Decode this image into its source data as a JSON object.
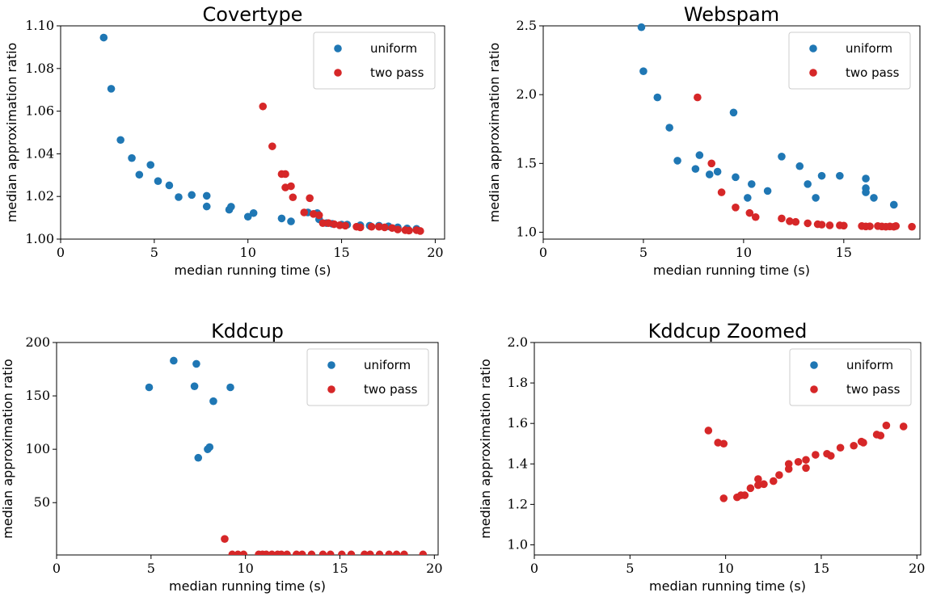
{
  "chart_data": [
    {
      "type": "scatter",
      "title": "Covertype",
      "xlabel": "median running time (s)",
      "ylabel": "median approximation ratio",
      "xlim": [
        0,
        20.5
      ],
      "ylim": [
        1.0,
        1.1
      ],
      "xticks": [
        "0",
        "5",
        "10",
        "15",
        "20"
      ],
      "xtick_values": [
        0,
        5,
        10,
        15,
        20
      ],
      "yticks": [
        "1.00",
        "1.02",
        "1.04",
        "1.06",
        "1.08",
        "1.10"
      ],
      "ytick_values": [
        1.0,
        1.02,
        1.04,
        1.06,
        1.08,
        1.1
      ],
      "legend_position": "top-right",
      "series": [
        {
          "name": "uniform",
          "color": "#1f77b4",
          "points": [
            [
              2.3,
              1.0945
            ],
            [
              2.7,
              1.0705
            ],
            [
              3.2,
              1.0465
            ],
            [
              3.8,
              1.038
            ],
            [
              4.2,
              1.0302
            ],
            [
              4.8,
              1.0348
            ],
            [
              5.2,
              1.0272
            ],
            [
              5.8,
              1.0252
            ],
            [
              6.3,
              1.0197
            ],
            [
              7.0,
              1.0207
            ],
            [
              7.8,
              1.0203
            ],
            [
              7.8,
              1.0153
            ],
            [
              9.0,
              1.0138
            ],
            [
              9.1,
              1.0152
            ],
            [
              10.0,
              1.0105
            ],
            [
              10.3,
              1.0122
            ],
            [
              11.8,
              1.0097
            ],
            [
              12.3,
              1.0083
            ],
            [
              13.2,
              1.0125
            ],
            [
              13.7,
              1.0122
            ],
            [
              13.8,
              1.0093
            ],
            [
              14.2,
              1.0075
            ],
            [
              14.5,
              1.0072
            ],
            [
              15.0,
              1.0068
            ],
            [
              15.3,
              1.0068
            ],
            [
              16.0,
              1.0065
            ],
            [
              16.5,
              1.0063
            ],
            [
              17.0,
              1.0063
            ],
            [
              17.5,
              1.006
            ],
            [
              18.0,
              1.0055
            ],
            [
              18.5,
              1.005
            ],
            [
              19.0,
              1.0048
            ]
          ]
        },
        {
          "name": "two pass",
          "color": "#d62728",
          "points": [
            [
              10.8,
              1.0622
            ],
            [
              11.3,
              1.0435
            ],
            [
              11.8,
              1.0305
            ],
            [
              12.0,
              1.0305
            ],
            [
              12.0,
              1.0242
            ],
            [
              12.3,
              1.0248
            ],
            [
              12.4,
              1.0196
            ],
            [
              13.0,
              1.0125
            ],
            [
              13.3,
              1.0192
            ],
            [
              13.5,
              1.0118
            ],
            [
              13.8,
              1.0112
            ],
            [
              14.0,
              1.0075
            ],
            [
              14.3,
              1.0075
            ],
            [
              14.6,
              1.007
            ],
            [
              14.9,
              1.0065
            ],
            [
              15.2,
              1.0063
            ],
            [
              15.8,
              1.0058
            ],
            [
              16.0,
              1.0055
            ],
            [
              16.6,
              1.0058
            ],
            [
              17.0,
              1.0058
            ],
            [
              17.3,
              1.0055
            ],
            [
              17.7,
              1.0052
            ],
            [
              18.0,
              1.0045
            ],
            [
              18.4,
              1.0042
            ],
            [
              18.6,
              1.004
            ],
            [
              19.0,
              1.0042
            ],
            [
              19.2,
              1.0038
            ]
          ]
        }
      ]
    },
    {
      "type": "scatter",
      "title": "Webspam",
      "xlabel": "median running time (s)",
      "ylabel": "median approximation ratio",
      "xlim": [
        0,
        18.8
      ],
      "ylim": [
        0.95,
        2.5
      ],
      "xticks": [
        "0",
        "5",
        "10",
        "15"
      ],
      "xtick_values": [
        0,
        5,
        10,
        15
      ],
      "yticks": [
        "1.0",
        "1.5",
        "2.0",
        "2.5"
      ],
      "ytick_values": [
        1.0,
        1.5,
        2.0,
        2.5
      ],
      "legend_position": "top-right",
      "series": [
        {
          "name": "uniform",
          "color": "#1f77b4",
          "points": [
            [
              4.9,
              2.49
            ],
            [
              5.0,
              2.17
            ],
            [
              5.7,
              1.98
            ],
            [
              6.3,
              1.76
            ],
            [
              6.7,
              1.52
            ],
            [
              7.6,
              1.46
            ],
            [
              7.8,
              1.56
            ],
            [
              8.3,
              1.42
            ],
            [
              8.7,
              1.44
            ],
            [
              9.5,
              1.87
            ],
            [
              9.6,
              1.4
            ],
            [
              10.2,
              1.25
            ],
            [
              10.4,
              1.35
            ],
            [
              11.2,
              1.3
            ],
            [
              11.9,
              1.55
            ],
            [
              12.8,
              1.48
            ],
            [
              13.2,
              1.35
            ],
            [
              13.6,
              1.25
            ],
            [
              13.9,
              1.41
            ],
            [
              14.8,
              1.41
            ],
            [
              16.1,
              1.39
            ],
            [
              16.1,
              1.32
            ],
            [
              16.1,
              1.29
            ],
            [
              16.5,
              1.25
            ],
            [
              17.5,
              1.2
            ]
          ]
        },
        {
          "name": "two pass",
          "color": "#d62728",
          "points": [
            [
              7.7,
              1.98
            ],
            [
              8.4,
              1.5
            ],
            [
              8.9,
              1.29
            ],
            [
              9.6,
              1.18
            ],
            [
              10.3,
              1.14
            ],
            [
              10.6,
              1.11
            ],
            [
              11.9,
              1.1
            ],
            [
              12.3,
              1.08
            ],
            [
              12.6,
              1.075
            ],
            [
              13.2,
              1.065
            ],
            [
              13.7,
              1.058
            ],
            [
              13.9,
              1.055
            ],
            [
              14.3,
              1.05
            ],
            [
              14.8,
              1.05
            ],
            [
              15.0,
              1.048
            ],
            [
              15.9,
              1.045
            ],
            [
              16.1,
              1.042
            ],
            [
              16.3,
              1.043
            ],
            [
              16.7,
              1.045
            ],
            [
              16.9,
              1.042
            ],
            [
              17.1,
              1.04
            ],
            [
              17.3,
              1.042
            ],
            [
              17.5,
              1.04
            ],
            [
              17.6,
              1.045
            ],
            [
              18.4,
              1.04
            ]
          ]
        }
      ]
    },
    {
      "type": "scatter",
      "title": "Kddcup",
      "xlabel": "median running time (s)",
      "ylabel": "median approximation ratio",
      "xlim": [
        0,
        20.2
      ],
      "ylim": [
        1,
        200
      ],
      "xticks": [
        "0",
        "5",
        "10",
        "15",
        "20"
      ],
      "xtick_values": [
        0,
        5,
        10,
        15,
        20
      ],
      "yticks": [
        "50",
        "100",
        "150",
        "200"
      ],
      "ytick_values": [
        50,
        100,
        150,
        200
      ],
      "legend_position": "top-right",
      "series": [
        {
          "name": "uniform",
          "color": "#1f77b4",
          "points": [
            [
              4.9,
              158
            ],
            [
              6.2,
              183
            ],
            [
              7.3,
              159
            ],
            [
              7.4,
              180
            ],
            [
              7.5,
              92
            ],
            [
              8.0,
              100
            ],
            [
              8.1,
              102
            ],
            [
              8.3,
              145
            ],
            [
              9.2,
              158
            ]
          ]
        },
        {
          "name": "two pass",
          "color": "#d62728",
          "points": [
            [
              8.9,
              16
            ],
            [
              9.3,
              1.5
            ],
            [
              9.6,
              1.5
            ],
            [
              9.9,
              1.5
            ],
            [
              10.7,
              1.5
            ],
            [
              10.9,
              1.5
            ],
            [
              11.1,
              1.5
            ],
            [
              11.4,
              1.5
            ],
            [
              11.7,
              1.5
            ],
            [
              11.9,
              1.5
            ],
            [
              12.2,
              1.5
            ],
            [
              12.7,
              1.5
            ],
            [
              13.0,
              1.5
            ],
            [
              13.5,
              1.5
            ],
            [
              14.1,
              1.5
            ],
            [
              14.5,
              1.5
            ],
            [
              15.1,
              1.5
            ],
            [
              15.6,
              1.5
            ],
            [
              16.3,
              1.5
            ],
            [
              16.6,
              1.5
            ],
            [
              17.1,
              1.5
            ],
            [
              17.6,
              1.5
            ],
            [
              18.0,
              1.5
            ],
            [
              18.4,
              1.5
            ],
            [
              19.4,
              1.5
            ]
          ]
        }
      ]
    },
    {
      "type": "scatter",
      "title": "Kddcup Zoomed",
      "xlabel": "median running time (s)",
      "ylabel": "median approximation ratio",
      "xlim": [
        0,
        20.2
      ],
      "ylim": [
        0.95,
        2.0
      ],
      "xticks": [
        "0",
        "5",
        "10",
        "15",
        "20"
      ],
      "xtick_values": [
        0,
        5,
        10,
        15,
        20
      ],
      "yticks": [
        "1.0",
        "1.2",
        "1.4",
        "1.6",
        "1.8",
        "2.0"
      ],
      "ytick_values": [
        1.0,
        1.2,
        1.4,
        1.6,
        1.8,
        2.0
      ],
      "legend_position": "top-right",
      "series": [
        {
          "name": "uniform",
          "color": "#1f77b4",
          "points": []
        },
        {
          "name": "two pass",
          "color": "#d62728",
          "points": [
            [
              9.1,
              1.565
            ],
            [
              9.6,
              1.505
            ],
            [
              9.9,
              1.5
            ],
            [
              9.9,
              1.23
            ],
            [
              10.6,
              1.235
            ],
            [
              10.8,
              1.245
            ],
            [
              11.0,
              1.245
            ],
            [
              11.3,
              1.28
            ],
            [
              11.7,
              1.295
            ],
            [
              11.7,
              1.325
            ],
            [
              12.0,
              1.3
            ],
            [
              12.5,
              1.315
            ],
            [
              12.8,
              1.345
            ],
            [
              13.3,
              1.375
            ],
            [
              13.3,
              1.4
            ],
            [
              13.8,
              1.41
            ],
            [
              14.2,
              1.38
            ],
            [
              14.2,
              1.42
            ],
            [
              14.7,
              1.445
            ],
            [
              15.3,
              1.45
            ],
            [
              15.5,
              1.44
            ],
            [
              16.0,
              1.48
            ],
            [
              16.7,
              1.49
            ],
            [
              17.1,
              1.51
            ],
            [
              17.2,
              1.505
            ],
            [
              17.9,
              1.545
            ],
            [
              18.1,
              1.54
            ],
            [
              18.4,
              1.59
            ],
            [
              19.3,
              1.585
            ]
          ]
        }
      ]
    }
  ]
}
